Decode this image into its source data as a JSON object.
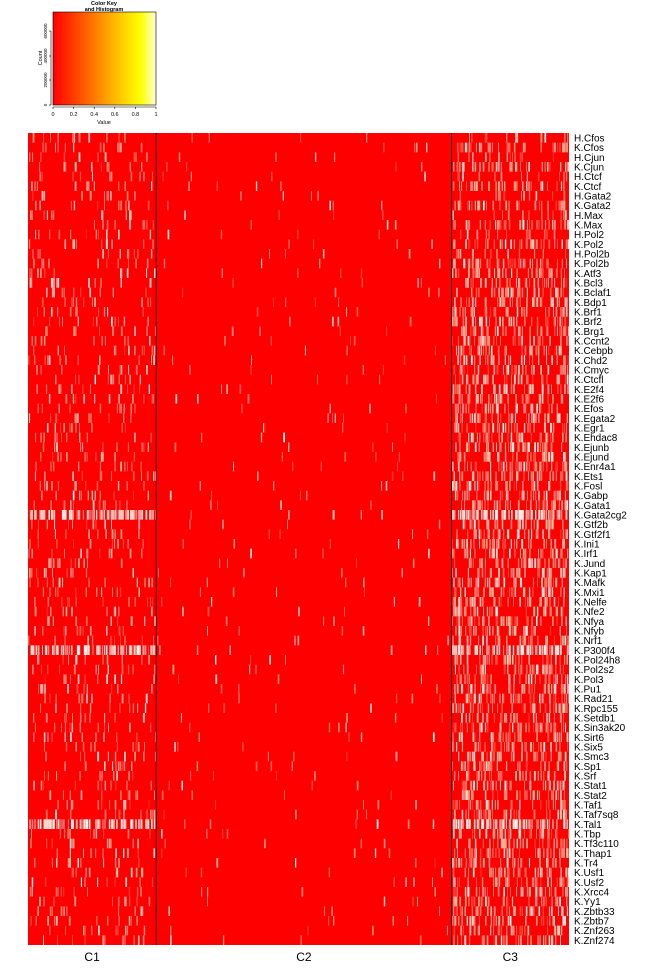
{
  "chart_data": [
    {
      "type": "histogram",
      "title": "Color Key\nand Histogram",
      "xlabel": "Value",
      "ylabel": "Count",
      "xlim": [
        0,
        1
      ],
      "x_ticks": [
        "0",
        "0.2",
        "0.4",
        "0.6",
        "0.8",
        "1"
      ],
      "y_ticks": [
        "0",
        "200000",
        "400000",
        "600000"
      ],
      "color_scale": [
        "#ff0000",
        "#ff4400",
        "#ff8800",
        "#ffcc00",
        "#ffff00",
        "#ffffc8"
      ],
      "note": "color key gradient from red (0) to yellow/white (1); histogram trace not readable"
    },
    {
      "type": "heatmap",
      "rows": [
        "H.Cfos",
        "K.Cfos",
        "H.Cjun",
        "K.Cjun",
        "H.Ctcf",
        "K.Ctcf",
        "H.Gata2",
        "K.Gata2",
        "H.Max",
        "K.Max",
        "H.Pol2",
        "K.Pol2",
        "H.Pol2b",
        "K.Pol2b",
        "K.Atf3",
        "K.Bcl3",
        "K.Bclaf1",
        "K.Bdp1",
        "K.Brf1",
        "K.Brf2",
        "K.Brg1",
        "K.Ccnt2",
        "K.Cebpb",
        "K.Chd2",
        "K.Cmyc",
        "K.Ctcfl",
        "K.E2f4",
        "K.E2f6",
        "K.Efos",
        "K.Egata2",
        "K.Egr1",
        "K.Ehdac8",
        "K.Ejunb",
        "K.Ejund",
        "K.Enr4a1",
        "K.Ets1",
        "K.Fosl",
        "K.Gabp",
        "K.Gata1",
        "K.Gata2cg2",
        "K.Gtf2b",
        "K.Gtf2f1",
        "K.Ini1",
        "K.Irf1",
        "K.Jund",
        "K.Kap1",
        "K.Mafk",
        "K.Mxi1",
        "K.Nelfe",
        "K.Nfe2",
        "K.Nfya",
        "K.Nfyb",
        "K.Nrf1",
        "K.P300f4",
        "K.Pol24h8",
        "K.Pol2s2",
        "K.Pol3",
        "K.Pu1",
        "K.Rad21",
        "K.Rpc155",
        "K.Setdb1",
        "K.Sin3ak20",
        "K.Sirt6",
        "K.Six5",
        "K.Smc3",
        "K.Sp1",
        "K.Srf",
        "K.Stat1",
        "K.Stat2",
        "K.Taf1",
        "K.Taf7sq8",
        "K.Tal1",
        "K.Tbp",
        "K.Tf3c110",
        "K.Thap1",
        "K.Tr4",
        "K.Usf1",
        "K.Usf2",
        "K.Xrcc4",
        "K.Yy1",
        "K.Zbtb33",
        "K.Zbtb7",
        "K.Znf263",
        "K.Znf274"
      ],
      "column_groups": [
        {
          "name": "C1",
          "share": 0.237
        },
        {
          "name": "C2",
          "share": 0.546
        },
        {
          "name": "C3",
          "share": 0.217
        }
      ],
      "value_range": [
        0,
        1
      ],
      "predominant_value": 0,
      "note": "individual cell values not readable; heatmap is predominantly red (low values) with scattered light streaks, densest in group C3 and in rows K.Gata2cg2, K.P300f4 and K.Tal1"
    }
  ]
}
